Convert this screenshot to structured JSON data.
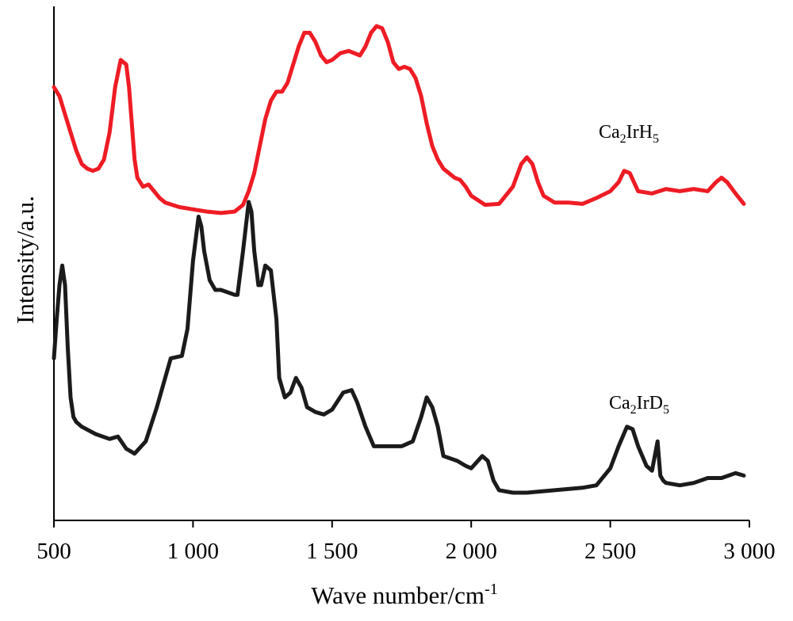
{
  "chart_data": {
    "type": "line",
    "xlabel": "Wave number/cm",
    "xlabel_sup": "-1",
    "ylabel": "Intensity/a.u.",
    "xlim": [
      500,
      3000
    ],
    "ylim": [
      0,
      10
    ],
    "grid": false,
    "x_ticks": [
      500,
      1000,
      1500,
      2000,
      2500,
      3000
    ],
    "x_tick_labels": [
      "500",
      "1 000",
      "1 500",
      "2 000",
      "2 500",
      "3 000"
    ],
    "y_ticks_shown": false,
    "series": [
      {
        "name": "Ca2IrH5",
        "label_base": "Ca",
        "label_sub1": "2",
        "label_mid": "IrH",
        "label_sub2": "5",
        "color": "#ee1c25",
        "x": [
          500,
          520,
          540,
          560,
          580,
          600,
          620,
          640,
          660,
          680,
          700,
          720,
          740,
          760,
          770,
          780,
          790,
          800,
          820,
          840,
          860,
          880,
          900,
          950,
          1000,
          1050,
          1100,
          1150,
          1180,
          1200,
          1220,
          1240,
          1260,
          1280,
          1300,
          1320,
          1340,
          1360,
          1380,
          1400,
          1420,
          1440,
          1460,
          1480,
          1500,
          1530,
          1560,
          1600,
          1620,
          1640,
          1660,
          1680,
          1700,
          1720,
          1740,
          1760,
          1780,
          1800,
          1820,
          1840,
          1860,
          1880,
          1900,
          1920,
          1940,
          1960,
          1980,
          2000,
          2050,
          2100,
          2150,
          2180,
          2200,
          2220,
          2240,
          2260,
          2300,
          2350,
          2400,
          2450,
          2500,
          2530,
          2550,
          2570,
          2600,
          2650,
          2700,
          2750,
          2800,
          2850,
          2880,
          2900,
          2920,
          2950,
          2980
        ],
        "y": [
          8.2,
          8.0,
          7.6,
          7.2,
          6.8,
          6.5,
          6.4,
          6.35,
          6.4,
          6.6,
          7.2,
          8.2,
          8.8,
          8.7,
          8.2,
          7.4,
          6.6,
          6.2,
          6.0,
          6.05,
          5.9,
          5.75,
          5.65,
          5.55,
          5.5,
          5.45,
          5.42,
          5.45,
          5.6,
          5.9,
          6.3,
          6.9,
          7.5,
          7.9,
          8.1,
          8.1,
          8.3,
          8.7,
          9.1,
          9.4,
          9.4,
          9.2,
          8.9,
          8.75,
          8.8,
          8.95,
          9.0,
          8.9,
          9.1,
          9.4,
          9.55,
          9.5,
          9.2,
          8.75,
          8.6,
          8.65,
          8.6,
          8.4,
          8.0,
          7.4,
          6.9,
          6.6,
          6.4,
          6.3,
          6.2,
          6.15,
          6.0,
          5.8,
          5.6,
          5.62,
          6.0,
          6.5,
          6.65,
          6.5,
          6.1,
          5.8,
          5.65,
          5.65,
          5.62,
          5.75,
          5.9,
          6.1,
          6.35,
          6.3,
          5.9,
          5.85,
          5.95,
          5.9,
          5.95,
          5.9,
          6.1,
          6.2,
          6.1,
          5.85,
          5.62
        ]
      },
      {
        "name": "Ca2IrD5",
        "label_base": "Ca",
        "label_sub1": "2",
        "label_mid": "IrD",
        "label_sub2": "5",
        "color": "#1b1b1b",
        "x": [
          500,
          510,
          520,
          530,
          540,
          550,
          560,
          570,
          580,
          600,
          650,
          700,
          730,
          760,
          790,
          830,
          870,
          900,
          920,
          960,
          980,
          1000,
          1020,
          1030,
          1040,
          1060,
          1080,
          1100,
          1150,
          1160,
          1180,
          1200,
          1210,
          1220,
          1235,
          1245,
          1260,
          1280,
          1300,
          1310,
          1330,
          1350,
          1370,
          1390,
          1410,
          1440,
          1470,
          1500,
          1540,
          1570,
          1590,
          1620,
          1650,
          1680,
          1700,
          1750,
          1790,
          1820,
          1840,
          1860,
          1880,
          1900,
          1950,
          1980,
          2000,
          2040,
          2060,
          2080,
          2100,
          2150,
          2200,
          2300,
          2400,
          2450,
          2500,
          2530,
          2560,
          2580,
          2600,
          2630,
          2650,
          2670,
          2680,
          2690,
          2700,
          2750,
          2800,
          2850,
          2900,
          2950,
          2980
        ],
        "y": [
          3.0,
          3.8,
          4.5,
          4.9,
          4.5,
          3.2,
          2.2,
          1.8,
          1.7,
          1.6,
          1.45,
          1.35,
          1.4,
          1.15,
          1.05,
          1.3,
          2.0,
          2.6,
          3.0,
          3.05,
          3.6,
          5.0,
          5.9,
          5.7,
          5.2,
          4.6,
          4.4,
          4.4,
          4.3,
          4.3,
          5.2,
          6.2,
          6.0,
          5.2,
          4.5,
          4.5,
          4.9,
          4.8,
          3.8,
          2.6,
          2.2,
          2.3,
          2.6,
          2.4,
          2.0,
          1.9,
          1.85,
          1.95,
          2.3,
          2.35,
          2.1,
          1.6,
          1.2,
          1.2,
          1.2,
          1.2,
          1.3,
          1.8,
          2.2,
          2.0,
          1.6,
          1.0,
          0.9,
          0.8,
          0.75,
          1.0,
          0.9,
          0.5,
          0.3,
          0.25,
          0.25,
          0.3,
          0.35,
          0.4,
          0.75,
          1.2,
          1.6,
          1.55,
          1.2,
          0.8,
          0.7,
          1.3,
          0.6,
          0.5,
          0.45,
          0.4,
          0.45,
          0.55,
          0.55,
          0.65,
          0.6
        ]
      }
    ]
  }
}
